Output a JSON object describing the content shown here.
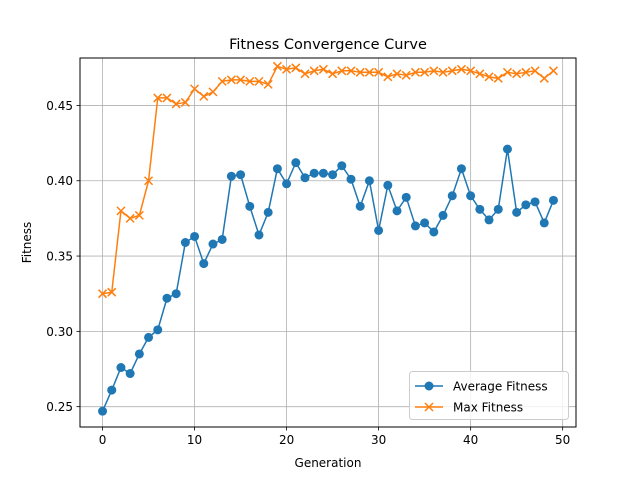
{
  "chart_data": {
    "type": "line",
    "title": "Fitness Convergence Curve",
    "xlabel": "Generation",
    "ylabel": "Fitness",
    "xlim": [
      -2.45,
      51.45
    ],
    "ylim": [
      0.2365,
      0.4815
    ],
    "x_ticks": [
      0,
      10,
      20,
      30,
      40,
      50
    ],
    "y_ticks": [
      0.25,
      0.3,
      0.35,
      0.4,
      0.45
    ],
    "x_tick_labels": [
      "0",
      "10",
      "20",
      "30",
      "40",
      "50"
    ],
    "y_tick_labels": [
      "0.25",
      "0.30",
      "0.35",
      "0.40",
      "0.45"
    ],
    "grid": true,
    "legend_position": "lower-right",
    "x": [
      0,
      1,
      2,
      3,
      4,
      5,
      6,
      7,
      8,
      9,
      10,
      11,
      12,
      13,
      14,
      15,
      16,
      17,
      18,
      19,
      20,
      21,
      22,
      23,
      24,
      25,
      26,
      27,
      28,
      29,
      30,
      31,
      32,
      33,
      34,
      35,
      36,
      37,
      38,
      39,
      40,
      41,
      42,
      43,
      44,
      45,
      46,
      47,
      48,
      49
    ],
    "series": [
      {
        "name": "Average Fitness",
        "color": "#1f77b4",
        "marker": "circle",
        "values": [
          0.247,
          0.261,
          0.276,
          0.272,
          0.285,
          0.296,
          0.301,
          0.322,
          0.325,
          0.359,
          0.363,
          0.345,
          0.358,
          0.361,
          0.403,
          0.404,
          0.383,
          0.364,
          0.379,
          0.408,
          0.398,
          0.412,
          0.402,
          0.405,
          0.405,
          0.404,
          0.41,
          0.401,
          0.383,
          0.4,
          0.367,
          0.397,
          0.38,
          0.389,
          0.37,
          0.372,
          0.366,
          0.377,
          0.39,
          0.408,
          0.39,
          0.381,
          0.374,
          0.381,
          0.421,
          0.379,
          0.384,
          0.386,
          0.372,
          0.387
        ]
      },
      {
        "name": "Max Fitness",
        "color": "#ff7f0e",
        "marker": "x",
        "values": [
          0.325,
          0.326,
          0.38,
          0.375,
          0.377,
          0.4,
          0.455,
          0.455,
          0.451,
          0.452,
          0.461,
          0.456,
          0.459,
          0.466,
          0.467,
          0.467,
          0.466,
          0.466,
          0.464,
          0.476,
          0.474,
          0.475,
          0.471,
          0.473,
          0.474,
          0.471,
          0.473,
          0.473,
          0.472,
          0.472,
          0.472,
          0.469,
          0.471,
          0.47,
          0.472,
          0.472,
          0.473,
          0.472,
          0.473,
          0.474,
          0.473,
          0.471,
          0.469,
          0.468,
          0.472,
          0.471,
          0.472,
          0.473,
          0.468,
          0.473
        ]
      }
    ]
  }
}
